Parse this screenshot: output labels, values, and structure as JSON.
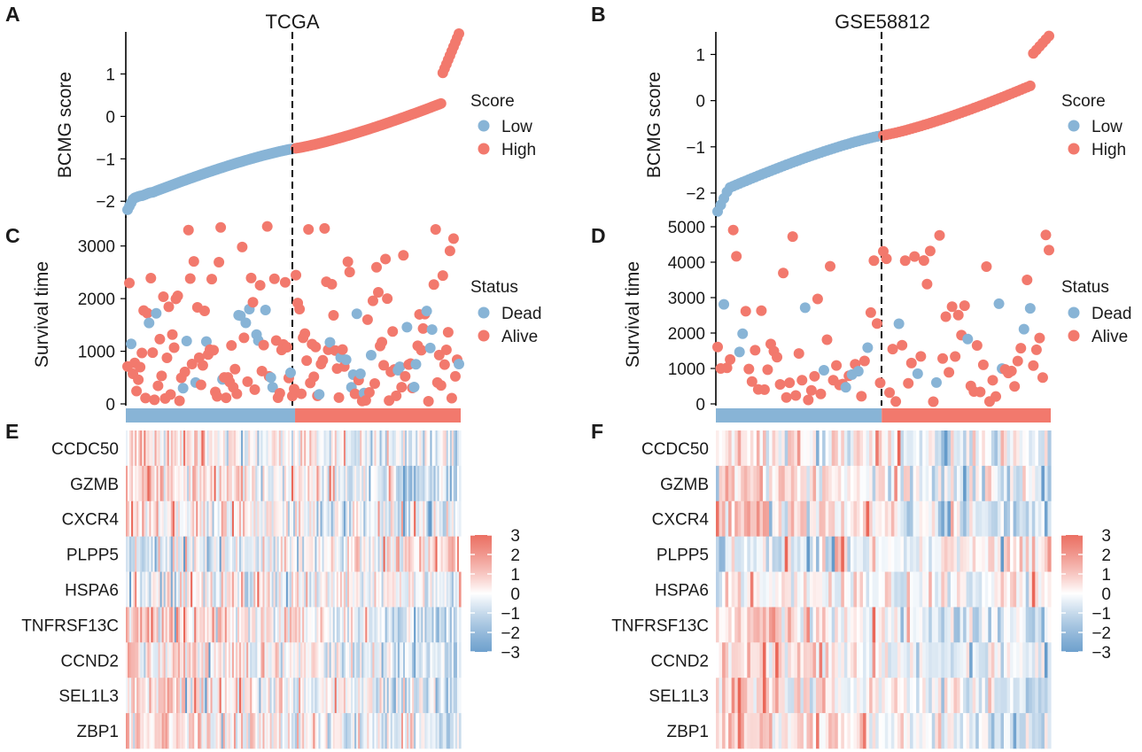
{
  "colors": {
    "low": "#88b4d6",
    "high": "#f2796d",
    "dead": "#88b4d6",
    "alive": "#f2796d",
    "heat_low": "#4a89c1",
    "heat_mid": "#ffffff",
    "heat_high": "#e64c3c"
  },
  "panels": {
    "a": "A",
    "b": "B",
    "c": "C",
    "d": "D",
    "e": "E",
    "f": "F"
  },
  "chart_data": [
    {
      "id": "A",
      "type": "scatter",
      "title": "TCGA",
      "ylabel": "BCMG score",
      "xlabel": "",
      "ylim": [
        -2.35,
        1.95
      ],
      "yticks": [
        "1",
        "0",
        "−1",
        "−2"
      ],
      "ytick_values": [
        1,
        0,
        -1,
        -2
      ],
      "n_samples": 186,
      "cutoff_index": 94,
      "score_range": [
        -2.2,
        1.95
      ],
      "legend": {
        "title": "Score",
        "items": [
          "Low",
          "High"
        ]
      }
    },
    {
      "id": "B",
      "type": "scatter",
      "title": "GSE58812",
      "ylabel": "BCMG score",
      "xlabel": "",
      "ylim": [
        -2.5,
        1.45
      ],
      "yticks": [
        "1",
        "0",
        "−1",
        "−2"
      ],
      "ytick_values": [
        1,
        0,
        -1,
        -2
      ],
      "n_samples": 107,
      "cutoff_index": 53,
      "score_range": [
        -2.4,
        1.4
      ],
      "legend": {
        "title": "Score",
        "items": [
          "Low",
          "High"
        ]
      }
    },
    {
      "id": "C",
      "type": "scatter",
      "title": "",
      "ylabel": "Survival time",
      "xlabel": "",
      "ylim": [
        0,
        3500
      ],
      "yticks": [
        "3000",
        "2000",
        "1000",
        "0"
      ],
      "ytick_values": [
        3000,
        2000,
        1000,
        0
      ],
      "n_samples": 186,
      "cutoff_index": 94,
      "legend": {
        "title": "Status",
        "items": [
          "Dead",
          "Alive"
        ]
      }
    },
    {
      "id": "D",
      "type": "scatter",
      "title": "",
      "ylabel": "Survival time",
      "xlabel": "",
      "ylim": [
        0,
        5200
      ],
      "yticks": [
        "5000",
        "4000",
        "3000",
        "2000",
        "1000",
        "0"
      ],
      "ytick_values": [
        5000,
        4000,
        3000,
        2000,
        1000,
        0
      ],
      "n_samples": 107,
      "cutoff_index": 53,
      "legend": {
        "title": "Status",
        "items": [
          "Dead",
          "Alive"
        ]
      }
    },
    {
      "id": "E",
      "type": "heatmap",
      "genes": [
        "CCDC50",
        "GZMB",
        "CXCR4",
        "PLPP5",
        "HSPA6",
        "TNFRSF13C",
        "CCND2",
        "SEL1L3",
        "ZBP1"
      ],
      "n_samples": 186,
      "cutoff_index": 94,
      "scale": {
        "range": [
          -3,
          3
        ],
        "ticks": [
          "3",
          "2",
          "1",
          "0",
          "−1",
          "−2",
          "−3"
        ],
        "tick_values": [
          3,
          2,
          1,
          0,
          -1,
          -2,
          -3
        ]
      }
    },
    {
      "id": "F",
      "type": "heatmap",
      "genes": [
        "CCDC50",
        "GZMB",
        "CXCR4",
        "PLPP5",
        "HSPA6",
        "TNFRSF13C",
        "CCND2",
        "SEL1L3",
        "ZBP1"
      ],
      "n_samples": 107,
      "cutoff_index": 53,
      "scale": {
        "range": [
          -3,
          3
        ],
        "ticks": [
          "3",
          "2",
          "1",
          "0",
          "−1",
          "−2",
          "−3"
        ],
        "tick_values": [
          3,
          2,
          1,
          0,
          -1,
          -2,
          -3
        ]
      }
    }
  ]
}
